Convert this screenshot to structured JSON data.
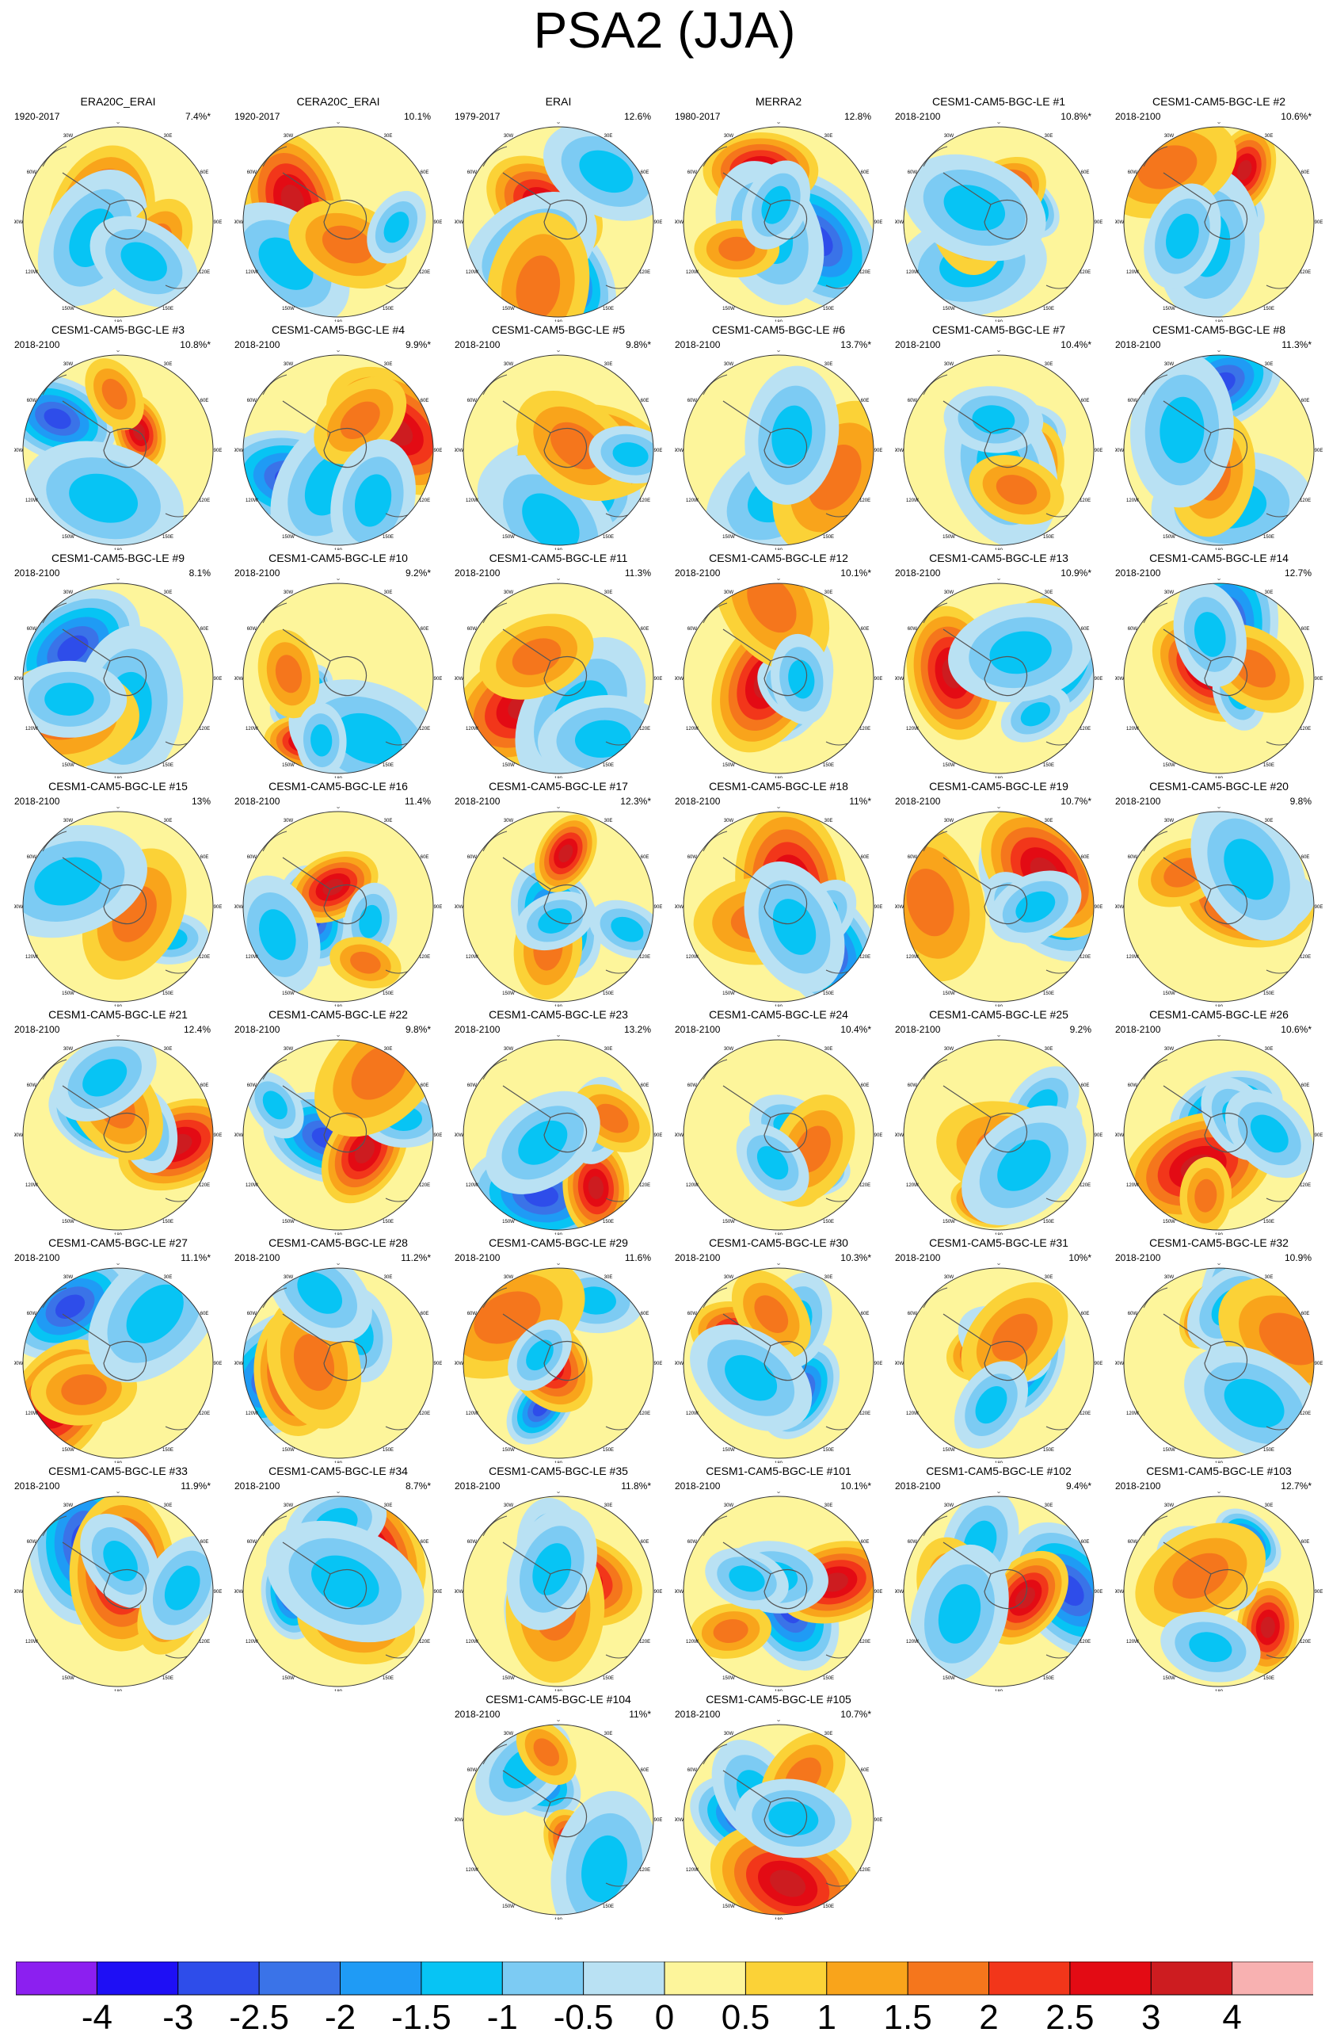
{
  "title": "PSA2 (JJA)",
  "meridian_labels": [
    "0",
    "30E",
    "60E",
    "90E",
    "120E",
    "150E",
    "180",
    "150W",
    "120W",
    "90W",
    "60W",
    "30W"
  ],
  "palette": [
    "#8c1ff0",
    "#1e0ff5",
    "#2e4dea",
    "#3a73e8",
    "#1f9bf5",
    "#07c4f4",
    "#7ccbf3",
    "#b9e1f3",
    "#fdf59b",
    "#fbd237",
    "#f9a41b",
    "#f5761c",
    "#f2361a",
    "#e30b14",
    "#cd1c20",
    "#f8b1b1"
  ],
  "colorbar": {
    "labels": [
      "-4",
      "-3",
      "-2.5",
      "-2",
      "-1.5",
      "-1",
      "-0.5",
      "0",
      "0.5",
      "1",
      "1.5",
      "2",
      "2.5",
      "3",
      "4"
    ]
  },
  "panels": [
    {
      "title": "ERA20C_ERAI",
      "period": "1920-2017",
      "pct": "7.4%*"
    },
    {
      "title": "CERA20C_ERAI",
      "period": "1920-2017",
      "pct": "10.1%"
    },
    {
      "title": "ERAI",
      "period": "1979-2017",
      "pct": "12.6%"
    },
    {
      "title": "MERRA2",
      "period": "1980-2017",
      "pct": "12.8%"
    },
    {
      "title": "CESM1-CAM5-BGC-LE #1",
      "period": "2018-2100",
      "pct": "10.8%*"
    },
    {
      "title": "CESM1-CAM5-BGC-LE #2",
      "period": "2018-2100",
      "pct": "10.6%*"
    },
    {
      "title": "CESM1-CAM5-BGC-LE #3",
      "period": "2018-2100",
      "pct": "10.8%*"
    },
    {
      "title": "CESM1-CAM5-BGC-LE #4",
      "period": "2018-2100",
      "pct": "9.9%*"
    },
    {
      "title": "CESM1-CAM5-BGC-LE #5",
      "period": "2018-2100",
      "pct": "9.8%*"
    },
    {
      "title": "CESM1-CAM5-BGC-LE #6",
      "period": "2018-2100",
      "pct": "13.7%*"
    },
    {
      "title": "CESM1-CAM5-BGC-LE #7",
      "period": "2018-2100",
      "pct": "10.4%*"
    },
    {
      "title": "CESM1-CAM5-BGC-LE #8",
      "period": "2018-2100",
      "pct": "11.3%*"
    },
    {
      "title": "CESM1-CAM5-BGC-LE #9",
      "period": "2018-2100",
      "pct": "8.1%"
    },
    {
      "title": "CESM1-CAM5-BGC-LE #10",
      "period": "2018-2100",
      "pct": "9.2%*"
    },
    {
      "title": "CESM1-CAM5-BGC-LE #11",
      "period": "2018-2100",
      "pct": "11.3%"
    },
    {
      "title": "CESM1-CAM5-BGC-LE #12",
      "period": "2018-2100",
      "pct": "10.1%*"
    },
    {
      "title": "CESM1-CAM5-BGC-LE #13",
      "period": "2018-2100",
      "pct": "10.9%*"
    },
    {
      "title": "CESM1-CAM5-BGC-LE #14",
      "period": "2018-2100",
      "pct": "12.7%"
    },
    {
      "title": "CESM1-CAM5-BGC-LE #15",
      "period": "2018-2100",
      "pct": "13%"
    },
    {
      "title": "CESM1-CAM5-BGC-LE #16",
      "period": "2018-2100",
      "pct": "11.4%"
    },
    {
      "title": "CESM1-CAM5-BGC-LE #17",
      "period": "2018-2100",
      "pct": "12.3%*"
    },
    {
      "title": "CESM1-CAM5-BGC-LE #18",
      "period": "2018-2100",
      "pct": "11%*"
    },
    {
      "title": "CESM1-CAM5-BGC-LE #19",
      "period": "2018-2100",
      "pct": "10.7%*"
    },
    {
      "title": "CESM1-CAM5-BGC-LE #20",
      "period": "2018-2100",
      "pct": "9.8%"
    },
    {
      "title": "CESM1-CAM5-BGC-LE #21",
      "period": "2018-2100",
      "pct": "12.4%"
    },
    {
      "title": "CESM1-CAM5-BGC-LE #22",
      "period": "2018-2100",
      "pct": "9.8%*"
    },
    {
      "title": "CESM1-CAM5-BGC-LE #23",
      "period": "2018-2100",
      "pct": "13.2%"
    },
    {
      "title": "CESM1-CAM5-BGC-LE #24",
      "period": "2018-2100",
      "pct": "10.4%*"
    },
    {
      "title": "CESM1-CAM5-BGC-LE #25",
      "period": "2018-2100",
      "pct": "9.2%"
    },
    {
      "title": "CESM1-CAM5-BGC-LE #26",
      "period": "2018-2100",
      "pct": "10.6%*"
    },
    {
      "title": "CESM1-CAM5-BGC-LE #27",
      "period": "2018-2100",
      "pct": "11.1%*"
    },
    {
      "title": "CESM1-CAM5-BGC-LE #28",
      "period": "2018-2100",
      "pct": "11.2%*"
    },
    {
      "title": "CESM1-CAM5-BGC-LE #29",
      "period": "2018-2100",
      "pct": "11.6%"
    },
    {
      "title": "CESM1-CAM5-BGC-LE #30",
      "period": "2018-2100",
      "pct": "10.3%*"
    },
    {
      "title": "CESM1-CAM5-BGC-LE #31",
      "period": "2018-2100",
      "pct": "10%*"
    },
    {
      "title": "CESM1-CAM5-BGC-LE #32",
      "period": "2018-2100",
      "pct": "10.9%"
    },
    {
      "title": "CESM1-CAM5-BGC-LE #33",
      "period": "2018-2100",
      "pct": "11.9%*"
    },
    {
      "title": "CESM1-CAM5-BGC-LE #34",
      "period": "2018-2100",
      "pct": "8.7%*"
    },
    {
      "title": "CESM1-CAM5-BGC-LE #35",
      "period": "2018-2100",
      "pct": "11.8%*"
    },
    {
      "title": "CESM1-CAM5-BGC-LE #101",
      "period": "2018-2100",
      "pct": "10.1%*"
    },
    {
      "title": "CESM1-CAM5-BGC-LE #102",
      "period": "2018-2100",
      "pct": "9.4%*"
    },
    {
      "title": "CESM1-CAM5-BGC-LE #103",
      "period": "2018-2100",
      "pct": "12.7%*"
    },
    {
      "title": "CESM1-CAM5-BGC-LE #104",
      "period": "2018-2100",
      "pct": "11%*"
    },
    {
      "title": "CESM1-CAM5-BGC-LE #105",
      "period": "2018-2100",
      "pct": "10.7%*"
    }
  ]
}
